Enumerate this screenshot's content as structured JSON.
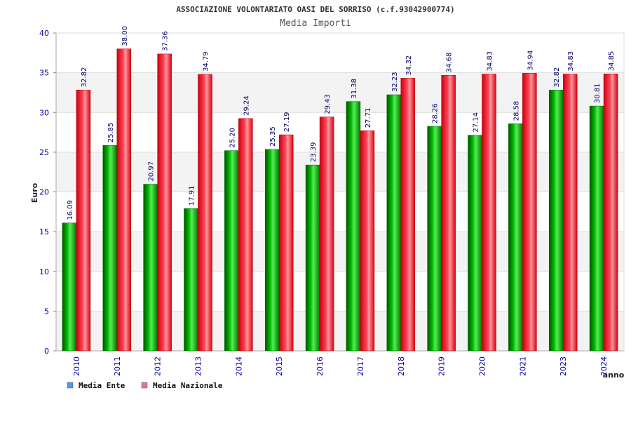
{
  "chart_data": {
    "type": "bar",
    "title": "ASSOCIAZIONE VOLONTARIATO OASI DEL SORRISO (c.f.93042900774)",
    "subtitle": "Media Importi",
    "xlabel": "anno",
    "ylabel": "Euro",
    "ylim": [
      0,
      40
    ],
    "yticks": [
      0,
      5,
      10,
      15,
      20,
      25,
      30,
      35,
      40
    ],
    "grid": true,
    "legend_position": "bottom-left",
    "categories": [
      "2010",
      "2011",
      "2012",
      "2013",
      "2014",
      "2015",
      "2016",
      "2017",
      "2018",
      "2019",
      "2020",
      "2021",
      "2023",
      "2024"
    ],
    "series": [
      {
        "name": "Media Ente",
        "color": "#00aa00",
        "values": [
          16.09,
          25.85,
          20.97,
          17.91,
          25.2,
          25.35,
          23.39,
          31.38,
          32.23,
          28.26,
          27.14,
          28.58,
          32.82,
          30.81
        ],
        "labels": [
          "16.09",
          "25.85",
          "20.97",
          "17.91",
          "25.20",
          "25.35",
          "23.39",
          "31.38",
          "32.23",
          "28.26",
          "27.14",
          "28.58",
          "32.82",
          "30.81"
        ]
      },
      {
        "name": "Media Nazionale",
        "color": "#ee1122",
        "values": [
          32.82,
          38.0,
          37.36,
          34.79,
          29.24,
          27.19,
          29.43,
          27.71,
          34.32,
          34.68,
          34.83,
          34.94,
          34.83,
          34.85
        ],
        "labels": [
          "32.82",
          "38.00",
          "37.36",
          "34.79",
          "29.24",
          "27.19",
          "29.43",
          "27.71",
          "34.32",
          "34.68",
          "34.83",
          "34.94",
          "34.83",
          "34.85"
        ]
      }
    ],
    "legend": [
      {
        "label": "Media Ente",
        "color": "#5599ee"
      },
      {
        "label": "Media Nazionale",
        "color": "#dd7799"
      }
    ]
  }
}
